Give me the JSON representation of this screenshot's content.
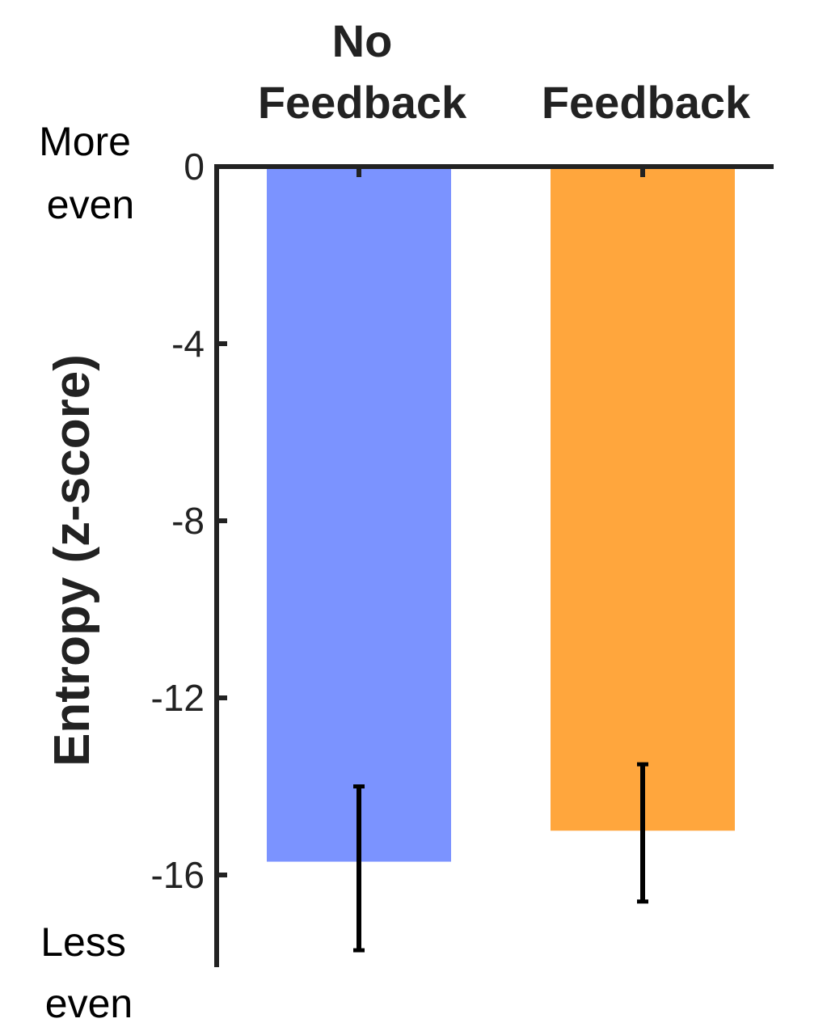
{
  "chart_data": {
    "type": "bar",
    "title": "",
    "xlabel": "",
    "ylabel": "Entropy (z-score)",
    "categories": [
      "No Feedback",
      "Feedback"
    ],
    "values": [
      -15.7,
      -15.0
    ],
    "error_low": [
      -17.7,
      -16.6
    ],
    "error_high": [
      -14.0,
      -13.5
    ],
    "colors": [
      "#7b93ff",
      "#ffa63d"
    ],
    "ylim": [
      -18.5,
      0
    ],
    "yticks": [
      0,
      -4,
      -8,
      -12,
      -16
    ],
    "ytick_labels": [
      "0",
      "-4",
      "-8",
      "-12",
      "-16"
    ],
    "x_axis_position": "top",
    "grid": false,
    "annotations": {
      "top": [
        "More",
        "even"
      ],
      "bottom": [
        "Less",
        "even"
      ]
    }
  }
}
